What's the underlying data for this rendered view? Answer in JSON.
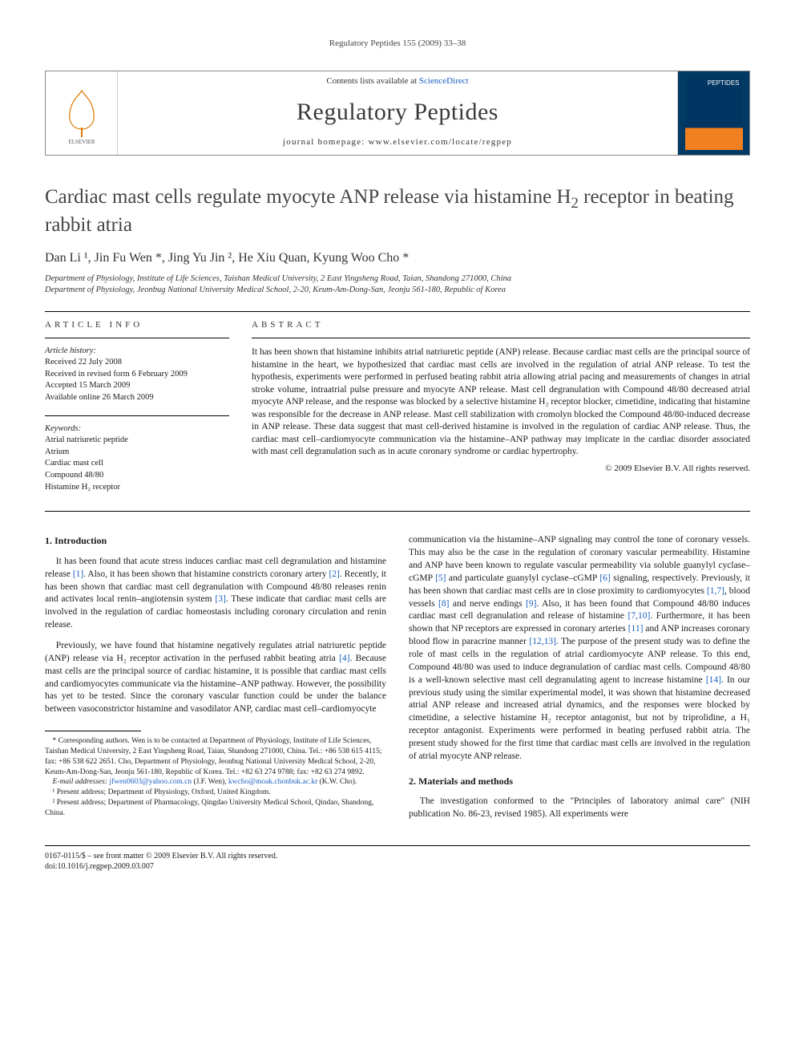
{
  "running_header": "Regulatory Peptides 155 (2009) 33–38",
  "masthead": {
    "contents_prefix": "Contents lists available at ",
    "contents_link": "ScienceDirect",
    "journal": "Regulatory Peptides",
    "homepage_prefix": "journal homepage: ",
    "homepage": "www.elsevier.com/locate/regpep",
    "cover_label": "PEPTIDES"
  },
  "title_line1": "Cardiac mast cells regulate myocyte ANP release via histamine H",
  "title_sub": "2",
  "title_line2": " receptor in beating rabbit atria",
  "authors_html": "Dan Li ¹, Jin Fu Wen *, Jing Yu Jin ², He Xiu Quan, Kyung Woo Cho *",
  "affiliations": [
    "Department of Physiology, Institute of Life Sciences, Taishan Medical University, 2 East Yingsheng Road, Taian, Shandong 271000, China",
    "Department of Physiology, Jeonbug National University Medical School, 2-20, Keum-Am-Dong-San, Jeonju 561-180, Republic of Korea"
  ],
  "article_info": {
    "heading": "article info",
    "history_label": "Article history:",
    "history": [
      "Received 22 July 2008",
      "Received in revised form 6 February 2009",
      "Accepted 15 March 2009",
      "Available online 26 March 2009"
    ],
    "keywords_label": "Keywords:",
    "keywords": [
      "Atrial natriuretic peptide",
      "Atrium",
      "Cardiac mast cell",
      "Compound 48/80",
      "Histamine H₂ receptor"
    ]
  },
  "abstract": {
    "heading": "abstract",
    "text": "It has been shown that histamine inhibits atrial natriuretic peptide (ANP) release. Because cardiac mast cells are the principal source of histamine in the heart, we hypothesized that cardiac mast cells are involved in the regulation of atrial ANP release. To test the hypothesis, experiments were performed in perfused beating rabbit atria allowing atrial pacing and measurements of changes in atrial stroke volume, intraatrial pulse pressure and myocyte ANP release. Mast cell degranulation with Compound 48/80 decreased atrial myocyte ANP release, and the response was blocked by a selective histamine H₂ receptor blocker, cimetidine, indicating that histamine was responsible for the decrease in ANP release. Mast cell stabilization with cromolyn blocked the Compound 48/80-induced decrease in ANP release. These data suggest that mast cell-derived histamine is involved in the regulation of cardiac ANP release. Thus, the cardiac mast cell–cardiomyocyte communication via the histamine–ANP pathway may implicate in the cardiac disorder associated with mast cell degranulation such as in acute coronary syndrome or cardiac hypertrophy.",
    "copyright": "© 2009 Elsevier B.V. All rights reserved."
  },
  "sections": {
    "intro_heading": "1. Introduction",
    "intro_p1": "It has been found that acute stress induces cardiac mast cell degranulation and histamine release [1]. Also, it has been shown that histamine constricts coronary artery [2]. Recently, it has been shown that cardiac mast cell degranulation with Compound 48/80 releases renin and activates local renin–angiotensin system [3]. These indicate that cardiac mast cells are involved in the regulation of cardiac homeostasis including coronary circulation and renin release.",
    "intro_p2": "Previously, we have found that histamine negatively regulates atrial natriuretic peptide (ANP) release via H₂ receptor activation in the perfused rabbit beating atria [4]. Because mast cells are the principal source of cardiac histamine, it is possible that cardiac mast cells and cardiomyocytes communicate via the histamine–ANP pathway. However, the possibility has yet to be tested. Since the coronary vascular function could be under the balance between vasoconstrictor histamine and vasodilator ANP, cardiac mast cell–cardiomyocyte",
    "intro_p3": "communication via the histamine–ANP signaling may control the tone of coronary vessels. This may also be the case in the regulation of coronary vascular permeability. Histamine and ANP have been known to regulate vascular permeability via soluble guanylyl cyclase–cGMP [5] and particulate guanylyl cyclase–cGMP [6] signaling, respectively. Previously, it has been shown that cardiac mast cells are in close proximity to cardiomyocytes [1,7], blood vessels [8] and nerve endings [9]. Also, it has been found that Compound 48/80 induces cardiac mast cell degranulation and release of histamine [7,10]. Furthermore, it has been shown that NP receptors are expressed in coronary arteries [11] and ANP increases coronary blood flow in paracrine manner [12,13]. The purpose of the present study was to define the role of mast cells in the regulation of atrial cardiomyocyte ANP release. To this end, Compound 48/80 was used to induce degranulation of cardiac mast cells. Compound 48/80 is a well-known selective mast cell degranulating agent to increase histamine [14]. In our previous study using the similar experimental model, it was shown that histamine decreased atrial ANP release and increased atrial dynamics, and the responses were blocked by cimetidine, a selective histamine H₂ receptor antagonist, but not by triprolidine, a H₁ receptor antagonist. Experiments were performed in beating perfused rabbit atria. The present study showed for the first time that cardiac mast cells are involved in the regulation of atrial myocyte ANP release.",
    "methods_heading": "2. Materials and methods",
    "methods_p1": "The investigation conformed to the \"Principles of laboratory animal care\" (NIH publication No. 86-23, revised 1985). All experiments were"
  },
  "footnotes": {
    "corresponding": "* Corresponding authors. Wen is to be contacted at Department of Physiology, Institute of Life Sciences, Taishan Medical University, 2 East Yingsheng Road, Taian, Shandong 271000, China. Tel.: +86 538 615 4115; fax: +86 538 622 2651. Cho, Department of Physiology, Jeonbug National University Medical School, 2-20, Keum-Am-Dong-San, Jeonju 561-180, Republic of Korea. Tel.: +82 63 274 9788; fax: +82 63 274 9892.",
    "email_label": "E-mail addresses: ",
    "email1": "jfwen0603@yahoo.com.cn",
    "email1_who": " (J.F. Wen), ",
    "email2": "kwcho@moak.chonbuk.ac.kr",
    "email2_who": " (K.W. Cho).",
    "note1": "¹ Present address; Department of Physiology, Oxford, United Kingdom.",
    "note2": "² Present address; Department of Pharmacology, Qingdao University Medical School, Qindao, Shandong, China."
  },
  "bottom": {
    "line1": "0167-0115/$ – see front matter © 2009 Elsevier B.V. All rights reserved.",
    "line2": "doi:10.1016/j.regpep.2009.03.007"
  },
  "colors": {
    "link": "#1a5fbf",
    "text": "#1a1a1a",
    "cover_bg": "#013a63",
    "cover_accent": "#f08020"
  }
}
